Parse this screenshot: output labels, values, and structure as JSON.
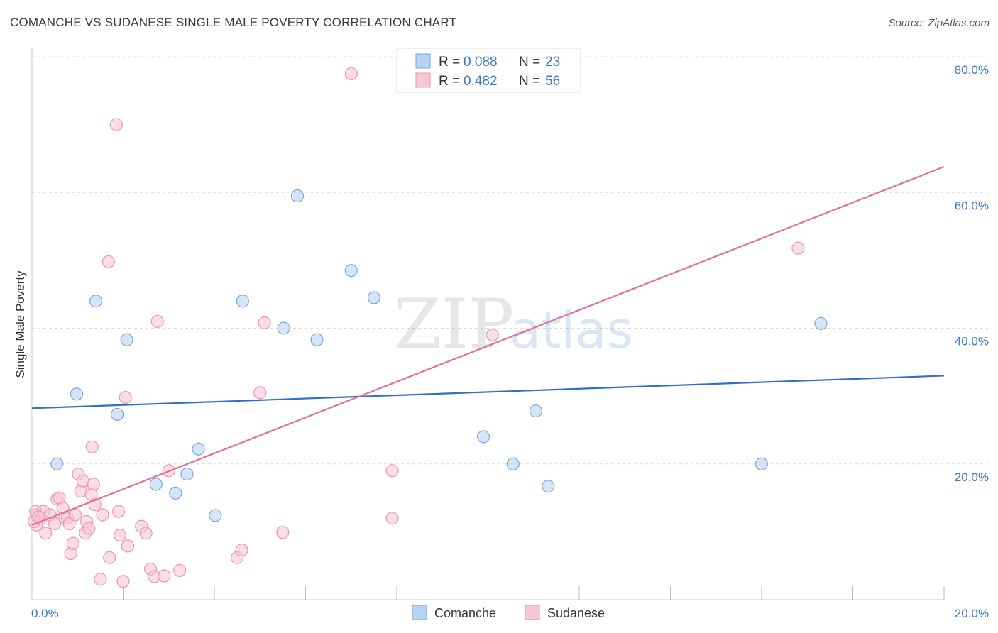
{
  "title": "COMANCHE VS SUDANESE SINGLE MALE POVERTY CORRELATION CHART",
  "source": "Source: ZipAtlas.com",
  "watermark": {
    "zip": "ZIP",
    "atlas": "atlas"
  },
  "colors": {
    "comanche_fill": "#b9d3f2",
    "comanche_stroke": "#7aa6de",
    "comanche_line": "#2f6fca",
    "sudanese_fill": "#f7c6d6",
    "sudanese_stroke": "#ee94b2",
    "sudanese_line": "#e0709a",
    "tick_text": "#3b78c9"
  },
  "legend": {
    "comanche": {
      "r_label": "R =",
      "r_value": "0.088",
      "n_label": "N =",
      "n_value": "23"
    },
    "sudanese": {
      "r_label": "R =",
      "r_value": "0.482",
      "n_label": "N =",
      "n_value": "56"
    }
  },
  "chart_data": {
    "type": "scatter",
    "title": "COMANCHE VS SUDANESE SINGLE MALE POVERTY CORRELATION CHART",
    "xlabel": "",
    "ylabel": "Single Male Poverty",
    "xlim": [
      0,
      20
    ],
    "ylim": [
      0,
      80
    ],
    "x_tick_labels": [
      "0.0%",
      "20.0%"
    ],
    "y_tick_labels": [
      "20.0%",
      "40.0%",
      "60.0%",
      "80.0%"
    ],
    "y_ticks": [
      20,
      40,
      60,
      80
    ],
    "grid": true,
    "legend_position": "top-center",
    "series": [
      {
        "name": "Comanche",
        "points": [
          [
            0.1,
            12.5
          ],
          [
            0.55,
            20.0
          ],
          [
            0.98,
            30.3
          ],
          [
            1.4,
            44.0
          ],
          [
            1.87,
            27.3
          ],
          [
            2.08,
            38.3
          ],
          [
            2.72,
            17.0
          ],
          [
            3.15,
            15.7
          ],
          [
            3.4,
            18.5
          ],
          [
            3.65,
            22.2
          ],
          [
            4.02,
            12.4
          ],
          [
            4.62,
            44.0
          ],
          [
            5.52,
            40.0
          ],
          [
            5.82,
            59.5
          ],
          [
            6.25,
            38.3
          ],
          [
            7.0,
            48.5
          ],
          [
            7.5,
            44.5
          ],
          [
            9.9,
            24.0
          ],
          [
            10.55,
            20.0
          ],
          [
            11.05,
            27.8
          ],
          [
            11.32,
            16.7
          ],
          [
            16.0,
            20.0
          ],
          [
            17.3,
            40.7
          ]
        ],
        "trend": {
          "x": [
            0,
            20
          ],
          "y": [
            28.2,
            33.0
          ]
        }
      },
      {
        "name": "Sudanese",
        "points": [
          [
            0.08,
            13.0
          ],
          [
            0.1,
            11.0
          ],
          [
            0.2,
            12.0
          ],
          [
            0.25,
            13.0
          ],
          [
            0.3,
            9.8
          ],
          [
            0.4,
            12.5
          ],
          [
            0.5,
            11.2
          ],
          [
            0.55,
            14.8
          ],
          [
            0.6,
            15.0
          ],
          [
            0.68,
            13.5
          ],
          [
            0.72,
            12.0
          ],
          [
            0.78,
            12.0
          ],
          [
            0.82,
            11.2
          ],
          [
            0.85,
            6.8
          ],
          [
            0.9,
            8.3
          ],
          [
            0.95,
            12.5
          ],
          [
            1.02,
            18.5
          ],
          [
            1.07,
            16.0
          ],
          [
            1.12,
            17.5
          ],
          [
            1.17,
            9.8
          ],
          [
            1.2,
            11.5
          ],
          [
            1.25,
            10.5
          ],
          [
            1.3,
            15.5
          ],
          [
            1.32,
            22.5
          ],
          [
            1.35,
            17.0
          ],
          [
            1.38,
            14.0
          ],
          [
            1.5,
            3.0
          ],
          [
            1.55,
            12.5
          ],
          [
            1.7,
            6.2
          ],
          [
            1.68,
            49.8
          ],
          [
            1.85,
            70.0
          ],
          [
            1.9,
            13.0
          ],
          [
            1.93,
            9.5
          ],
          [
            2.0,
            2.7
          ],
          [
            2.05,
            29.8
          ],
          [
            2.1,
            7.9
          ],
          [
            2.4,
            10.8
          ],
          [
            2.5,
            9.8
          ],
          [
            2.6,
            4.5
          ],
          [
            2.68,
            3.4
          ],
          [
            2.75,
            41.0
          ],
          [
            2.9,
            3.5
          ],
          [
            3.0,
            19.0
          ],
          [
            3.24,
            4.3
          ],
          [
            4.5,
            6.2
          ],
          [
            4.6,
            7.3
          ],
          [
            5.1,
            40.8
          ],
          [
            5.0,
            30.5
          ],
          [
            5.5,
            9.9
          ],
          [
            7.0,
            77.5
          ],
          [
            7.9,
            12.0
          ],
          [
            7.9,
            19.0
          ],
          [
            10.1,
            39.0
          ],
          [
            16.8,
            51.8
          ],
          [
            0.05,
            11.5
          ],
          [
            0.15,
            12.2
          ]
        ],
        "trend": {
          "x": [
            0,
            20
          ],
          "y": [
            11.0,
            63.8
          ]
        }
      }
    ]
  },
  "bottom_legend": [
    "Comanche",
    "Sudanese"
  ]
}
